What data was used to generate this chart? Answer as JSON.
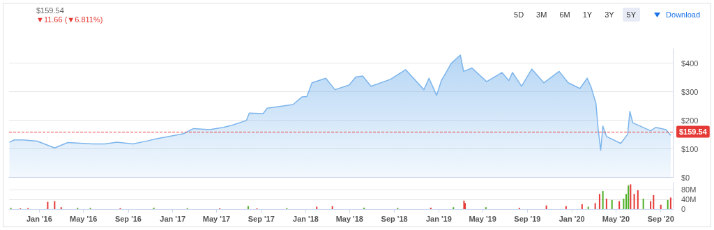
{
  "chart_data": [
    {
      "type": "area",
      "subtitle": "$159.54",
      "annotations": [
        "▼11.66 (▼6.811%)",
        "5D",
        "3M",
        "6M",
        "1Y",
        "3Y",
        "5Y",
        "Download"
      ],
      "x": [
        "2015-10-11",
        "2015-10-24",
        "2015-11-17",
        "2015-12-26",
        "2016-01-21",
        "2016-02-12",
        "2016-03-19",
        "2016-05-27",
        "2016-06-29",
        "2016-08-01",
        "2016-09-14",
        "2016-10-28",
        "2016-11-16",
        "2017-01-06",
        "2017-01-31",
        "2017-02-27",
        "2017-04-12",
        "2017-05-20",
        "2017-06-14",
        "2017-07-22",
        "2017-07-30",
        "2017-09-06",
        "2017-09-17",
        "2017-11-27",
        "2017-12-22",
        "2018-01-04",
        "2018-01-18",
        "2018-02-25",
        "2018-03-22",
        "2018-04-30",
        "2018-05-18",
        "2018-06-06",
        "2018-06-29",
        "2018-08-21",
        "2018-10-02",
        "2018-11-21",
        "2018-12-05",
        "2018-12-26",
        "2019-01-08",
        "2019-02-04",
        "2019-03-01",
        "2019-03-10",
        "2019-04-02",
        "2019-05-12",
        "2019-06-23",
        "2019-07-12",
        "2019-07-22",
        "2019-08-16",
        "2019-09-13",
        "2019-10-16",
        "2019-11-27",
        "2019-12-22",
        "2020-01-23",
        "2020-02-12",
        "2020-02-23",
        "2020-03-07",
        "2020-03-13",
        "2020-03-20",
        "2020-03-26",
        "2020-04-05",
        "2020-05-14",
        "2020-06-02",
        "2020-06-08",
        "2020-06-16",
        "2020-08-04",
        "2020-08-18",
        "2020-09-15",
        "2020-09-28"
      ],
      "series": [
        {
          "color": "#7cb5ec",
          "values": [
            123,
            131,
            131,
            127,
            114,
            103,
            122,
            117,
            117,
            123,
            117,
            129,
            135,
            147,
            153,
            171,
            167,
            175,
            183,
            199,
            225,
            223,
            242,
            255,
            282,
            283,
            331,
            347,
            307,
            323,
            351,
            355,
            319,
            343,
            377,
            307,
            347,
            287,
            339,
            399,
            428,
            371,
            383,
            335,
            367,
            339,
            367,
            319,
            379,
            331,
            371,
            331,
            311,
            347,
            315,
            259,
            171,
            95,
            179,
            143,
            119,
            151,
            231,
            191,
            163,
            175,
            167,
            147
          ]
        }
      ],
      "xlim": [
        "2015-10-10",
        "2020-10-04"
      ],
      "ylim": [
        0,
        450
      ],
      "yticks": [
        {
          "value": 0,
          "label": "$0"
        },
        {
          "value": 100,
          "label": "$100"
        },
        {
          "value": 200,
          "label": "$200"
        },
        {
          "value": 300,
          "label": "$300"
        },
        {
          "value": 400,
          "label": "$400"
        }
      ],
      "grid": "y",
      "tick_labels": "y",
      "ref_lines": [
        {
          "axis": "y",
          "value": 159.54,
          "label": "$159.54",
          "color": "#e53935",
          "line_style": "dashed"
        }
      ]
    },
    {
      "type": "bar",
      "x": [
        "2015-10-15",
        "2015-11-10",
        "2015-12-01",
        "2016-01-24",
        "2016-02-12",
        "2016-03-01",
        "2016-04-15",
        "2016-05-20",
        "2016-08-10",
        "2016-11-10",
        "2017-02-10",
        "2017-05-10",
        "2017-07-27",
        "2017-08-20",
        "2017-11-10",
        "2018-01-31",
        "2018-03-15",
        "2018-06-10",
        "2018-09-10",
        "2018-12-10",
        "2019-02-10",
        "2019-03-11",
        "2019-03-14",
        "2019-05-10",
        "2019-08-10",
        "2019-10-23",
        "2019-12-16",
        "2020-01-29",
        "2020-02-15",
        "2020-03-05",
        "2020-03-17",
        "2020-03-26",
        "2020-04-05",
        "2020-04-20",
        "2020-05-10",
        "2020-05-22",
        "2020-05-29",
        "2020-06-04",
        "2020-06-10",
        "2020-06-20",
        "2020-06-30",
        "2020-07-15",
        "2020-08-04",
        "2020-08-12",
        "2020-09-01",
        "2020-09-20",
        "2020-09-28"
      ],
      "values": [
        5,
        3,
        4,
        30,
        33,
        8,
        5,
        5,
        4,
        6,
        4,
        3,
        12,
        3,
        4,
        10,
        12,
        6,
        5,
        6,
        8,
        35,
        25,
        8,
        5,
        15,
        12,
        20,
        10,
        25,
        63,
        75,
        43,
        38,
        33,
        43,
        63,
        98,
        103,
        63,
        78,
        43,
        33,
        58,
        18,
        38,
        48
      ],
      "colors": [
        "#4caf24",
        "#e53935",
        "#e53935",
        "#e53935",
        "#e53935",
        "#e53935",
        "#4caf24",
        "#4caf24",
        "#e53935",
        "#4caf24",
        "#4caf24",
        "#e53935",
        "#4caf24",
        "#e53935",
        "#4caf24",
        "#e53935",
        "#e53935",
        "#4caf24",
        "#4caf24",
        "#e53935",
        "#4caf24",
        "#e53935",
        "#e53935",
        "#4caf24",
        "#e53935",
        "#e53935",
        "#e53935",
        "#e53935",
        "#4caf24",
        "#e53935",
        "#e53935",
        "#4caf24",
        "#e53935",
        "#4caf24",
        "#e53935",
        "#4caf24",
        "#4caf24",
        "#4caf24",
        "#e53935",
        "#e53935",
        "#e53935",
        "#4caf24",
        "#e53935",
        "#e53935",
        "#e53935",
        "#4caf24",
        "#e53935"
      ],
      "xlim": [
        "2015-10-10",
        "2020-10-04"
      ],
      "xticks": [
        {
          "value": "2016-01",
          "label": "Jan '16"
        },
        {
          "value": "2016-05",
          "label": "May '16"
        },
        {
          "value": "2016-09",
          "label": "Sep '16"
        },
        {
          "value": "2017-01",
          "label": "Jan '17"
        },
        {
          "value": "2017-05",
          "label": "May '17"
        },
        {
          "value": "2017-09",
          "label": "Sep '17"
        },
        {
          "value": "2018-01",
          "label": "Jan '18"
        },
        {
          "value": "2018-05",
          "label": "May '18"
        },
        {
          "value": "2018-09",
          "label": "Sep '18"
        },
        {
          "value": "2019-01",
          "label": "Jan '19"
        },
        {
          "value": "2019-05",
          "label": "May '19"
        },
        {
          "value": "2019-09",
          "label": "Sep '19"
        },
        {
          "value": "2020-01",
          "label": "Jan '20"
        },
        {
          "value": "2020-05",
          "label": "May '20"
        },
        {
          "value": "2020-09",
          "label": "Sep '20"
        }
      ],
      "ylim": [
        0,
        110
      ],
      "yticks": [
        {
          "value": 0,
          "label": "0"
        },
        {
          "value": 40,
          "label": "40M"
        },
        {
          "value": 80,
          "label": "80M"
        }
      ],
      "grid": "y"
    }
  ]
}
